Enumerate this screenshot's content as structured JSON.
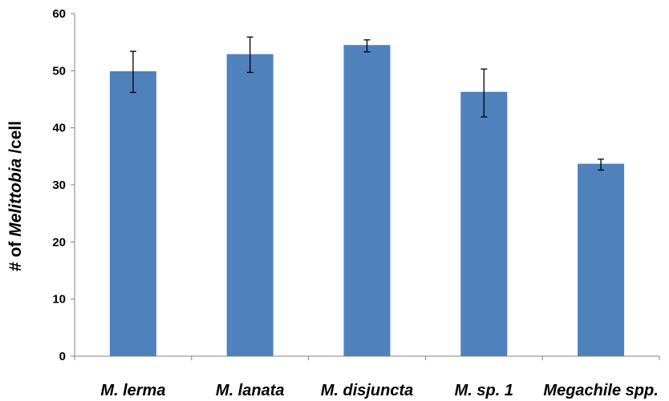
{
  "chart_data": {
    "type": "bar",
    "title": "",
    "xlabel": "",
    "ylabel": {
      "prefix": "# of ",
      "italic": "Melittobia",
      "suffix": " /cell"
    },
    "categories": [
      "M. lerma",
      "M. lanata",
      "M. disjuncta",
      "M. sp. 1",
      "Megachile spp."
    ],
    "values": [
      49.9,
      52.9,
      54.5,
      46.3,
      33.7
    ],
    "error_low": [
      46.2,
      49.7,
      53.3,
      41.9,
      32.6
    ],
    "error_high": [
      53.4,
      55.9,
      55.4,
      50.3,
      34.5
    ],
    "ylim": [
      0,
      60
    ],
    "yticks": [
      0,
      10,
      20,
      30,
      40,
      50,
      60
    ],
    "grid": false,
    "bar_color": "#4F81BD",
    "legend": "none"
  }
}
